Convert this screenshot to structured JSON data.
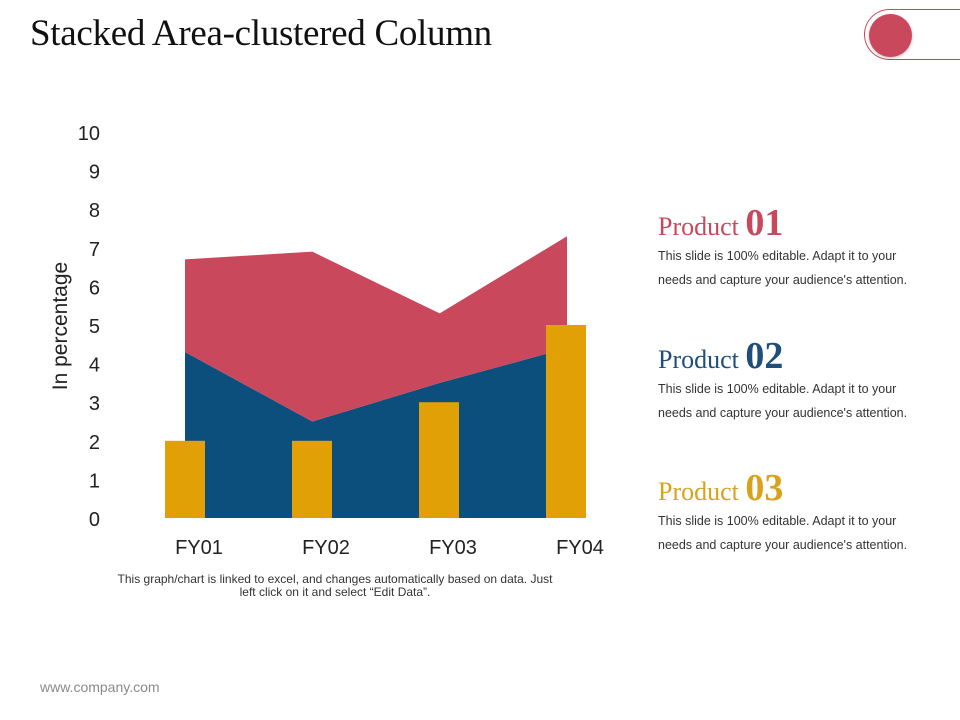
{
  "slide": {
    "title": "Stacked Area-clustered Column",
    "note": "This graph/chart is linked to excel, and changes automatically based on data. Just left click on it and select “Edit Data”.",
    "footer": "www.company.com",
    "accent_color": "#c9485b"
  },
  "products": [
    {
      "word": "Product",
      "number": "01",
      "desc": "This slide is 100% editable. Adapt it to your needs and capture your audience's attention.",
      "color": "#c9485b"
    },
    {
      "word": "Product",
      "number": "02",
      "desc": "This slide is 100% editable. Adapt it to your needs and capture your audience's attention.",
      "color": "#1f4e79"
    },
    {
      "word": "Product",
      "number": "03",
      "desc": "This slide is 100% editable. Adapt it to your needs and capture your audience's attention.",
      "color": "#d9a21b"
    }
  ],
  "chart_data": {
    "type": "area",
    "title": "",
    "xlabel": "",
    "ylabel": "In percentage",
    "ylim": [
      0,
      10
    ],
    "yticks": [
      0,
      1,
      2,
      3,
      4,
      5,
      6,
      7,
      8,
      9,
      10
    ],
    "categories": [
      "FY01",
      "FY02",
      "FY03",
      "FY04"
    ],
    "stacked_area": [
      {
        "values": [
          4.3,
          2.5,
          3.5,
          4.4
        ],
        "color": "#0d4f7c"
      },
      {
        "values": [
          2.4,
          4.4,
          1.8,
          2.9
        ],
        "color": "#c9485b"
      }
    ],
    "columns": {
      "values": [
        2,
        2,
        3,
        5
      ],
      "color": "#e0a006"
    },
    "grid": false,
    "legend": "none"
  }
}
